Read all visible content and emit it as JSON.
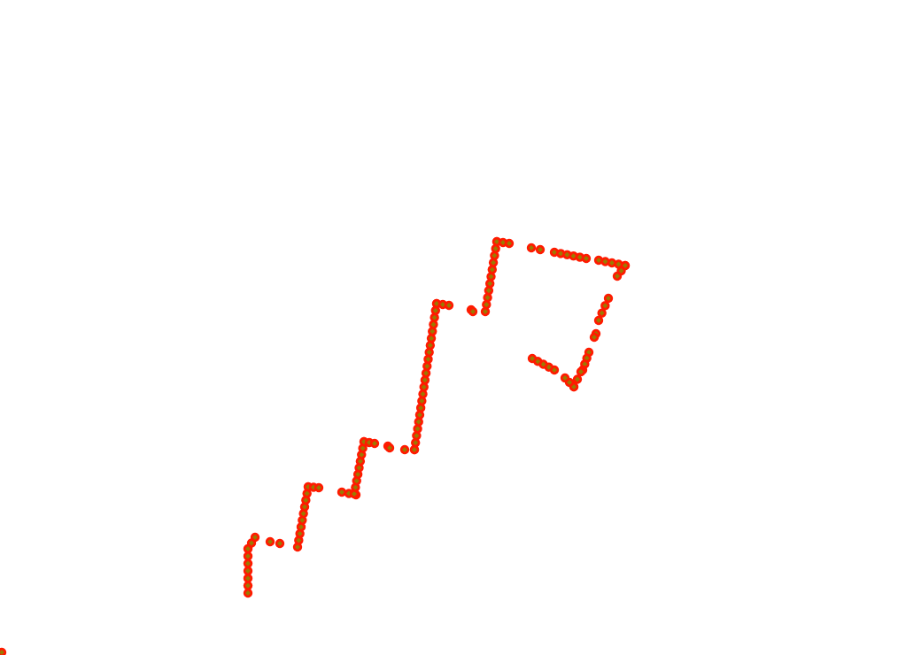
{
  "colors": {
    "background": "#ffffff",
    "marker_fill": "#ff1a00",
    "marker_inner": "#8b8b00"
  }
}
